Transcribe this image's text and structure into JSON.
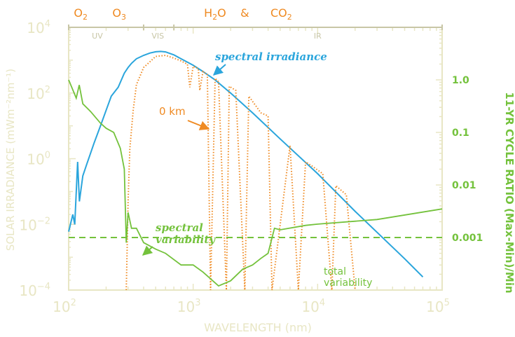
{
  "chart_data": {
    "type": "line",
    "xlabel": "WAVELENGTH (nm)",
    "ylabel_left": "SOLAR IRRADIANCE (mWm⁻²nm⁻¹)",
    "ylabel_right": "11-YR CYCLE RATIO (Max-Min)/Min",
    "x_scale": "log",
    "xlim": [
      100,
      100000
    ],
    "ylim_left": [
      0.0001,
      10000
    ],
    "ylim_right": [
      0.0001,
      10
    ],
    "x_ticks": [
      {
        "base": "10",
        "exp": "2",
        "value": 100
      },
      {
        "base": "10",
        "exp": "3",
        "value": 1000
      },
      {
        "base": "10",
        "exp": "4",
        "value": 10000
      },
      {
        "base": "10",
        "exp": "5",
        "value": 100000
      }
    ],
    "y_ticks_left": [
      {
        "base": "10",
        "exp": "4",
        "value": 10000
      },
      {
        "base": "10",
        "exp": "2",
        "value": 100
      },
      {
        "base": "10",
        "exp": "0",
        "value": 1
      },
      {
        "base": "10",
        "exp": "−2",
        "value": 0.01
      },
      {
        "base": "10",
        "exp": "−4",
        "value": 0.0001
      }
    ],
    "y_ticks_right": [
      {
        "label": "1.0",
        "value": 1.0
      },
      {
        "label": "0.1",
        "value": 0.1
      },
      {
        "label": "0.01",
        "value": 0.01
      },
      {
        "label": "0.001",
        "value": 0.001
      }
    ],
    "band_labels": [
      {
        "label": "UV",
        "x": 170
      },
      {
        "label": "VIS",
        "x": 520
      },
      {
        "label": "IR",
        "x": 10000
      }
    ],
    "absorbers": [
      {
        "label": "O",
        "sub": "2",
        "x": 125
      },
      {
        "label": "O",
        "sub": "3",
        "x": 255
      },
      {
        "label": "H",
        "sub": "2",
        "tail": "O",
        "x": 1500
      },
      {
        "label": "&",
        "sub": "",
        "x": 2600
      },
      {
        "label": "CO",
        "sub": "2",
        "x": 5100
      }
    ],
    "annotations": {
      "spectral_irradiance": "spectral irradiance",
      "zero_km": "0 km",
      "spectral_variability": "spectral variability",
      "total_variability": "total variability"
    },
    "total_variability_value": 0.001,
    "series": [
      {
        "name": "spectral irradiance",
        "color": "#2aa5dc",
        "axis": "left",
        "x": [
          100,
          108,
          112,
          118,
          122,
          130,
          140,
          160,
          180,
          200,
          220,
          250,
          280,
          300,
          320,
          350,
          400,
          450,
          500,
          550,
          600,
          700,
          800,
          1000,
          1200,
          1500,
          2000,
          3000,
          5000,
          10000,
          20000,
          50000,
          70000
        ],
        "y": [
          0.006,
          0.02,
          0.01,
          0.8,
          0.05,
          0.3,
          0.7,
          3,
          10,
          30,
          80,
          150,
          400,
          600,
          800,
          1100,
          1400,
          1650,
          1800,
          1850,
          1780,
          1450,
          1100,
          700,
          450,
          250,
          100,
          25,
          4,
          0.35,
          0.025,
          0.0009,
          0.00025
        ]
      },
      {
        "name": "0 km",
        "color": "#ef8a22",
        "axis": "left",
        "x": [
          290,
          295,
          300,
          310,
          330,
          350,
          400,
          450,
          500,
          600,
          700,
          800,
          900,
          940,
          1000,
          1100,
          1130,
          1200,
          1300,
          1380,
          1500,
          1600,
          1850,
          1950,
          2200,
          2600,
          2800,
          3500,
          4000,
          4300,
          6000,
          7000,
          8000,
          9000,
          11000,
          13000,
          14000,
          17000,
          20000
        ],
        "y": [
          0.0001,
          0.002,
          0.05,
          2,
          30,
          180,
          600,
          900,
          1300,
          1400,
          1150,
          950,
          750,
          150,
          650,
          550,
          120,
          450,
          360,
          0.0001,
          280,
          220,
          0.0001,
          160,
          120,
          0.0001,
          80,
          25,
          20,
          0.0001,
          2.5,
          0.0001,
          0.8,
          0.6,
          0.35,
          0.0001,
          0.15,
          0.08,
          0.0001
        ]
      },
      {
        "name": "spectral variability",
        "color": "#74c23c",
        "axis": "right",
        "x": [
          100,
          115,
          121.6,
          130,
          150,
          180,
          200,
          230,
          260,
          280,
          290,
          300,
          320,
          350,
          400,
          500,
          600,
          800,
          1000,
          1200,
          1600,
          2000,
          2500,
          3000,
          3500,
          4000,
          4500,
          5000,
          8000,
          10000,
          30000,
          100000
        ],
        "y": [
          1.0,
          0.45,
          0.8,
          0.35,
          0.25,
          0.15,
          0.12,
          0.1,
          0.05,
          0.02,
          0.0008,
          0.003,
          0.0015,
          0.0015,
          0.0008,
          0.0006,
          0.0005,
          0.0003,
          0.0003,
          0.00022,
          0.00012,
          0.00015,
          0.00025,
          0.0003,
          0.0004,
          0.0005,
          0.0015,
          0.0014,
          0.0017,
          0.0018,
          0.0022,
          0.0035
        ]
      }
    ]
  }
}
